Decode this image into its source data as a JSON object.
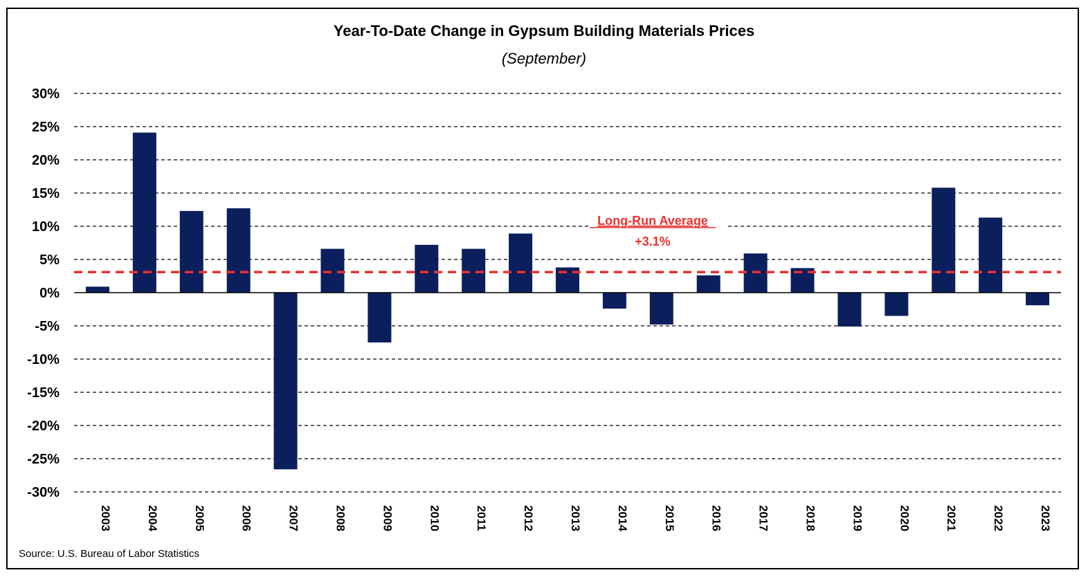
{
  "chart_data": {
    "type": "bar",
    "title": "Year-To-Date Change in Gypsum Building Materials Prices",
    "subtitle": "(September)",
    "source": "Source: U.S. Bureau of Labor Statistics",
    "categories": [
      "2003",
      "2004",
      "2005",
      "2006",
      "2007",
      "2008",
      "2009",
      "2010",
      "2011",
      "2012",
      "2013",
      "2014",
      "2015",
      "2016",
      "2017",
      "2018",
      "2019",
      "2020",
      "2021",
      "2022",
      "2023"
    ],
    "values": [
      0.9,
      24.1,
      12.3,
      12.7,
      -26.6,
      6.6,
      -7.5,
      7.2,
      6.6,
      8.9,
      3.8,
      -2.4,
      -4.8,
      2.6,
      5.9,
      3.7,
      -5.1,
      -3.5,
      15.8,
      11.3,
      -1.9
    ],
    "ylim": [
      -30,
      30
    ],
    "yticks": [
      30,
      25,
      20,
      15,
      10,
      5,
      0,
      -5,
      -10,
      -15,
      -20,
      -25,
      -30
    ],
    "ytick_labels": [
      "30%",
      "25%",
      "20%",
      "15%",
      "10%",
      "5%",
      "0%",
      "-5%",
      "-10%",
      "-15%",
      "-20%",
      "-25%",
      "-30%"
    ],
    "grid": "horizontal-dashed",
    "bar_color": "#0b1f5c",
    "average": {
      "value": 3.1,
      "label": "Long-Run Average",
      "value_label": "+3.1%",
      "color": "#e8322f"
    }
  }
}
